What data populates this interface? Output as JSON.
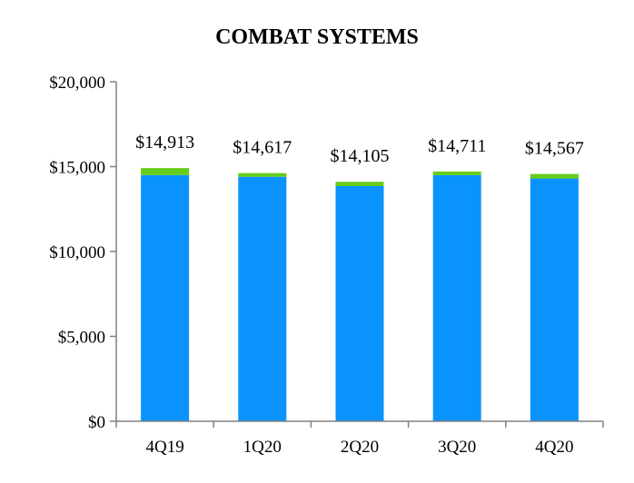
{
  "chart_data": {
    "type": "bar",
    "stacked": true,
    "title": "COMBAT SYSTEMS",
    "xlabel": "",
    "ylabel": "",
    "categories": [
      "4Q19",
      "1Q20",
      "2Q20",
      "3Q20",
      "4Q20"
    ],
    "series": [
      {
        "color": "#0a93fc",
        "values": [
          14500,
          14400,
          13850,
          14500,
          14300
        ]
      },
      {
        "color": "#66cc1a",
        "values": [
          413,
          217,
          255,
          211,
          267
        ]
      }
    ],
    "totals": [
      14913,
      14617,
      14105,
      14711,
      14567
    ],
    "total_labels": [
      "$14,913",
      "$14,617",
      "$14,105",
      "$14,711",
      "$14,567"
    ],
    "ylim": [
      0,
      20000
    ],
    "yticks": [
      0,
      5000,
      10000,
      15000,
      20000
    ],
    "ytick_labels": [
      "$0",
      "$5,000",
      "$10,000",
      "$15,000",
      "$20,000"
    ],
    "grid": false,
    "legend": "none",
    "axis_color": "#808080"
  }
}
